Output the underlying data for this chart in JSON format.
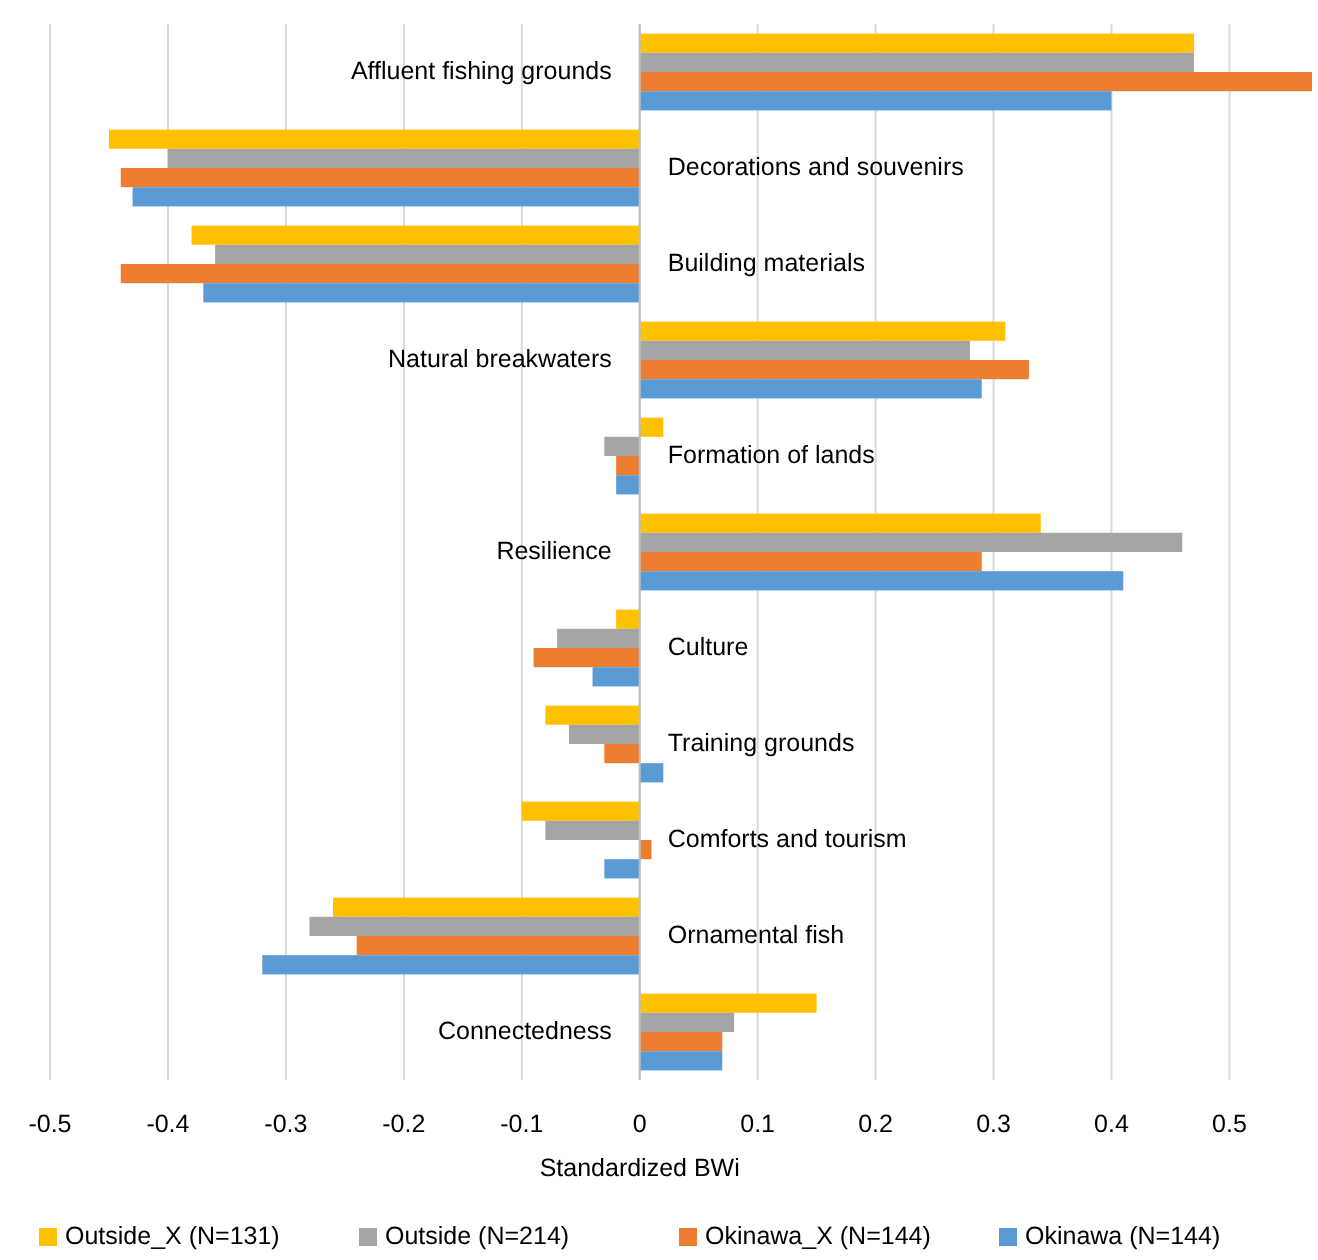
{
  "chart_data": {
    "type": "bar",
    "orientation": "horizontal",
    "xlabel": "Standardized BWi",
    "categories": [
      "Affluent fishing grounds",
      "Decorations and souvenirs",
      "Building materials",
      "Natural breakwaters",
      "Formation of lands",
      "Resilience",
      "Culture",
      "Training grounds",
      "Comforts and tourism",
      "Ornamental fish",
      "Connectedness"
    ],
    "series": [
      {
        "name": "Outside_X (N=131)",
        "color": "#ffc000",
        "values": [
          0.47,
          -0.45,
          -0.38,
          0.31,
          0.02,
          0.34,
          -0.02,
          -0.08,
          -0.1,
          -0.26,
          0.15
        ]
      },
      {
        "name": "Outside (N=214)",
        "color": "#a5a5a5",
        "values": [
          0.47,
          -0.4,
          -0.36,
          0.28,
          -0.03,
          0.46,
          -0.07,
          -0.06,
          -0.08,
          -0.28,
          0.08
        ]
      },
      {
        "name": "Okinawa_X (N=144)",
        "color": "#ed7d31",
        "values": [
          0.57,
          -0.44,
          -0.44,
          0.33,
          -0.02,
          0.29,
          -0.09,
          -0.03,
          0.01,
          -0.24,
          0.07
        ]
      },
      {
        "name": "Okinawa (N=144)",
        "color": "#5b9bd5",
        "values": [
          0.4,
          -0.43,
          -0.37,
          0.29,
          -0.02,
          0.41,
          -0.04,
          0.02,
          -0.03,
          -0.32,
          0.07
        ]
      }
    ],
    "xlim": [
      -0.5,
      0.57
    ],
    "xticks": [
      -0.5,
      -0.4,
      -0.3,
      -0.2,
      -0.1,
      0,
      0.1,
      0.2,
      0.3,
      0.4,
      0.5
    ],
    "grid": "x",
    "legend": "bottom"
  }
}
